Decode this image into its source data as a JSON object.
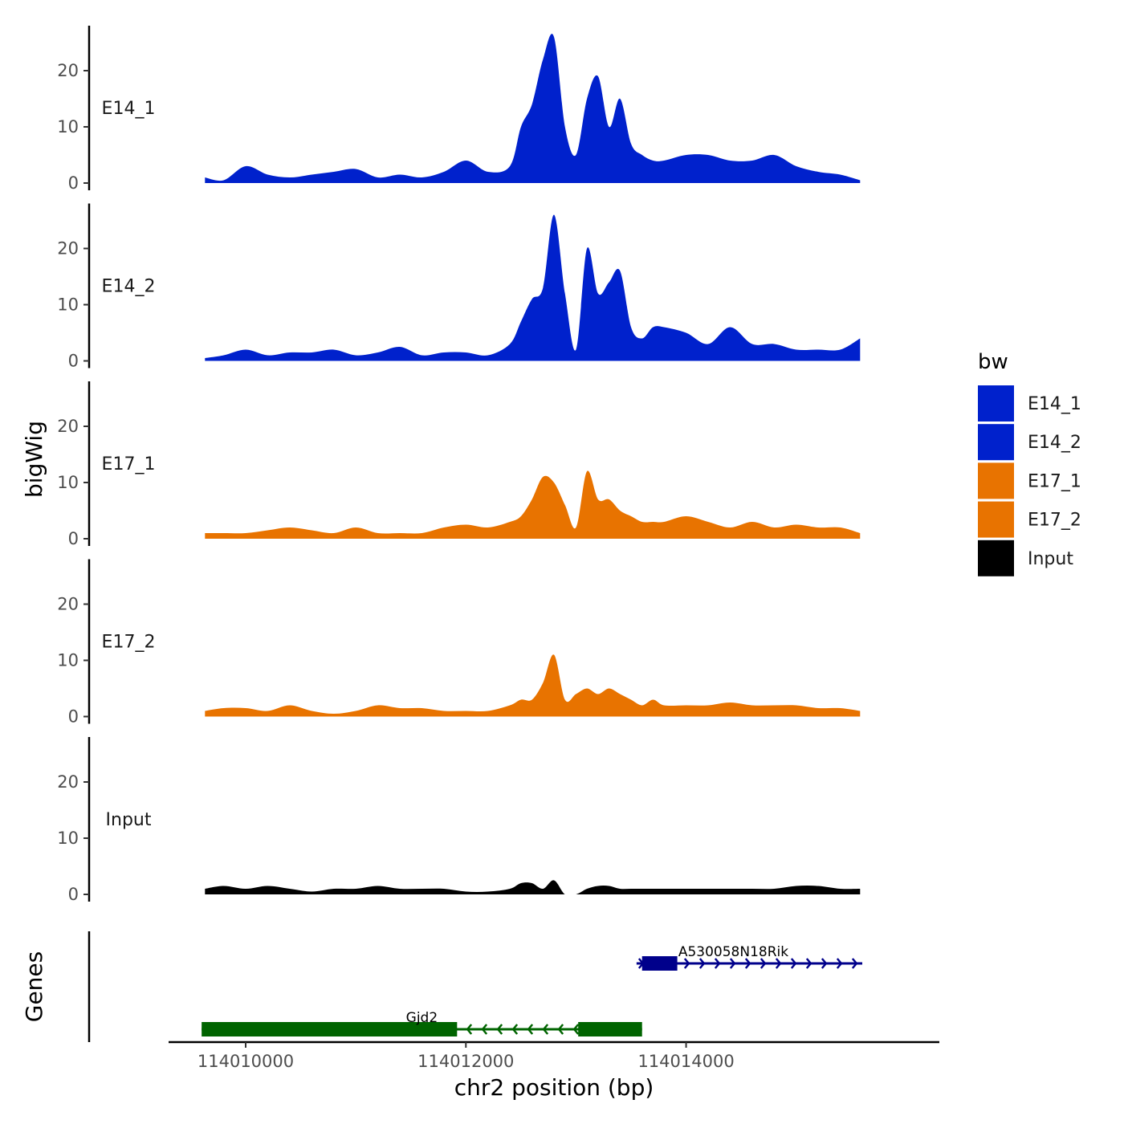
{
  "chart_data": {
    "type": "area",
    "title": "",
    "xlabel": "chr2 position (bp)",
    "ylabel": "bigWig",
    "genes_label": "Genes",
    "xlim": [
      114009300,
      114016300
    ],
    "x_ticks": [
      114010000,
      114012000,
      114014000
    ],
    "x_tick_labels": [
      "114010000",
      "114012000",
      "114014000"
    ],
    "ylim": [
      0,
      28
    ],
    "y_ticks": [
      0,
      10,
      20
    ],
    "y_tick_labels": [
      "0",
      "10",
      "20"
    ],
    "legend": {
      "title": "bw",
      "position": "right",
      "entries": [
        {
          "name": "E14_1",
          "color": "#0021CC"
        },
        {
          "name": "E14_2",
          "color": "#0021CC"
        },
        {
          "name": "E17_1",
          "color": "#E87300"
        },
        {
          "name": "E17_2",
          "color": "#E87300"
        },
        {
          "name": "Input",
          "color": "#000000"
        }
      ]
    },
    "track_x": [
      114009630,
      114009800,
      114010000,
      114010200,
      114010400,
      114010600,
      114010800,
      114011000,
      114011200,
      114011400,
      114011600,
      114011800,
      114012000,
      114012200,
      114012400,
      114012500,
      114012600,
      114012700,
      114012800,
      114012900,
      114013000,
      114013100,
      114013200,
      114013300,
      114013400,
      114013500,
      114013600,
      114013700,
      114013800,
      114014000,
      114014200,
      114014400,
      114014600,
      114014800,
      114015000,
      114015200,
      114015400,
      114015580
    ],
    "series": [
      {
        "name": "E14_1",
        "color": "#0021CC",
        "values": [
          1,
          0.5,
          3,
          1.5,
          1,
          1.5,
          2,
          2.5,
          1,
          1.5,
          1,
          2,
          4,
          2,
          3,
          10,
          14,
          22,
          26,
          10,
          5,
          15,
          19,
          10,
          15,
          7,
          5,
          4,
          4,
          5,
          5,
          4,
          4,
          5,
          3,
          2,
          1.5,
          0.5
        ]
      },
      {
        "name": "E14_2",
        "color": "#0021CC",
        "values": [
          0.5,
          1,
          2,
          1,
          1.5,
          1.5,
          2,
          1,
          1.5,
          2.5,
          1,
          1.5,
          1.5,
          1,
          3,
          7,
          11,
          13,
          26,
          12,
          2,
          20,
          12,
          14,
          16,
          6,
          4,
          6,
          6,
          5,
          3,
          6,
          3,
          3,
          2,
          2,
          2,
          4
        ]
      },
      {
        "name": "E17_1",
        "color": "#E87300",
        "values": [
          1,
          1,
          1,
          1.5,
          2,
          1.5,
          1,
          2,
          1,
          1,
          1,
          2,
          2.5,
          2,
          3,
          4,
          7,
          11,
          10,
          6,
          2,
          12,
          7,
          7,
          5,
          4,
          3,
          3,
          3,
          4,
          3,
          2,
          3,
          2,
          2.5,
          2,
          2,
          1
        ]
      },
      {
        "name": "E17_2",
        "color": "#E87300",
        "values": [
          1,
          1.5,
          1.5,
          1,
          2,
          1,
          0.5,
          1,
          2,
          1.5,
          1.5,
          1,
          1,
          1,
          2,
          3,
          3,
          6,
          11,
          3,
          4,
          5,
          4,
          5,
          4,
          3,
          2,
          3,
          2,
          2,
          2,
          2.5,
          2,
          2,
          2,
          1.5,
          1.5,
          1
        ]
      },
      {
        "name": "Input",
        "color": "#000000",
        "values": [
          1,
          1.5,
          1,
          1.5,
          1,
          0.5,
          1,
          1,
          1.5,
          1,
          1,
          1,
          0.5,
          0.5,
          1,
          2,
          2,
          1,
          2.5,
          0,
          0,
          1,
          1.5,
          1.5,
          1,
          1,
          1,
          1,
          1,
          1,
          1,
          1,
          1,
          1,
          1.5,
          1.5,
          1,
          1
        ]
      }
    ],
    "genes": [
      {
        "name": "A530058N18Rik",
        "strand": "+",
        "color": "#00008B",
        "start": 114013550,
        "end": 114015600,
        "exons": [
          [
            114013600,
            114013920
          ]
        ]
      },
      {
        "name": "Gjd2",
        "strand": "-",
        "color": "#006400",
        "start": 114009600,
        "end": 114013600,
        "exons": [
          [
            114009600,
            114011920
          ],
          [
            114013020,
            114013600
          ]
        ]
      }
    ]
  }
}
